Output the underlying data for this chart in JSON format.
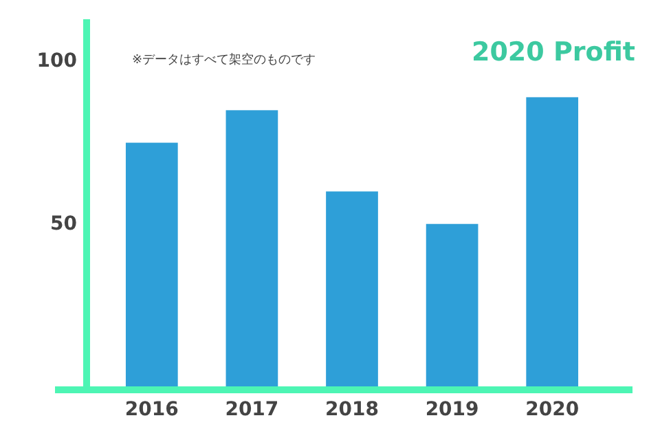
{
  "chart_data": {
    "type": "bar",
    "title": "2020 Profit",
    "annotations": [
      "※データはすべて架空のものです"
    ],
    "categories": [
      "2016",
      "2017",
      "2018",
      "2019",
      "2020"
    ],
    "values": [
      75,
      85,
      60,
      50,
      89
    ],
    "color": "#2e9fd8",
    "ylim": [
      0,
      113
    ],
    "yticks": [
      50,
      100
    ],
    "grid": false,
    "legend": false
  }
}
